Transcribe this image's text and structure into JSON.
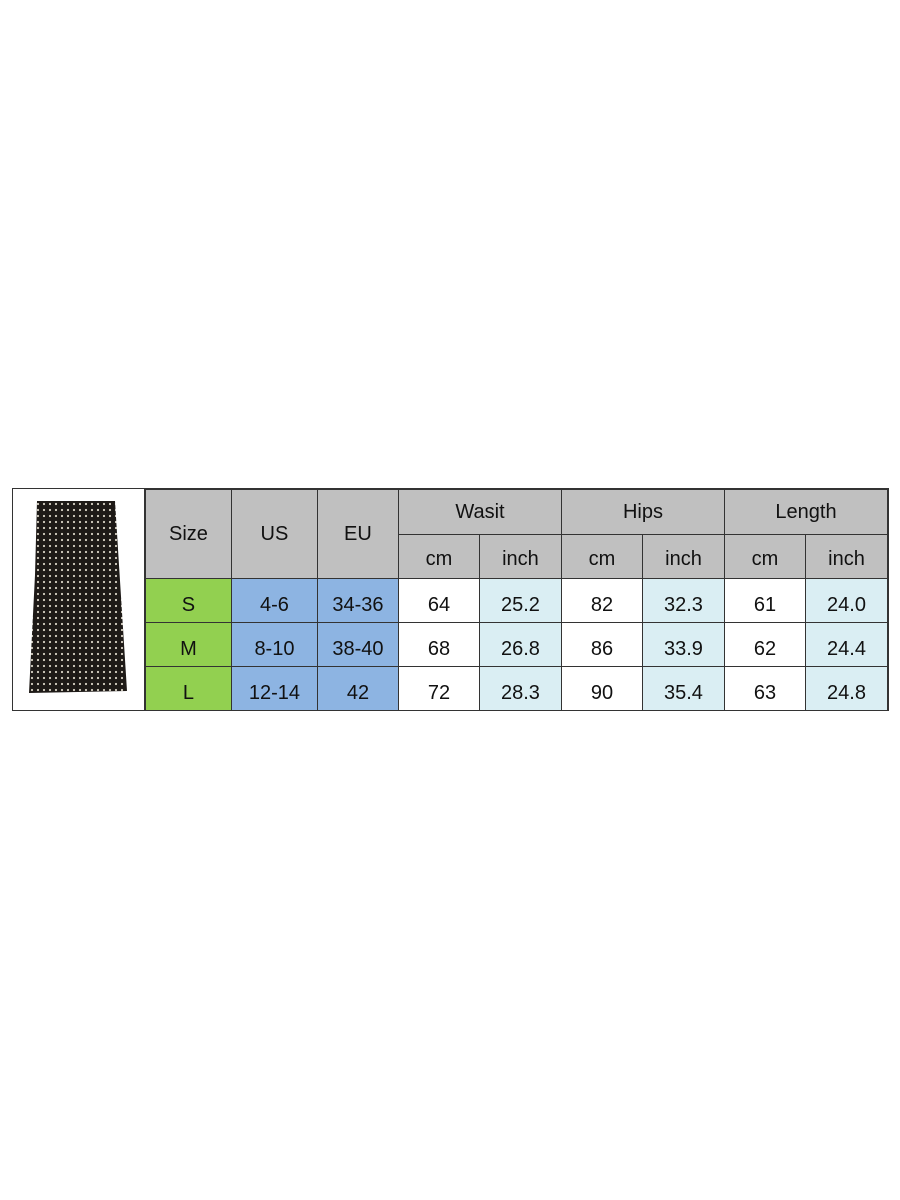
{
  "product_image": {
    "description_icon": "polka-dot-skirt-image",
    "colors": {
      "fabric": "#1e1a17",
      "dots": "#d8d2c4"
    }
  },
  "table": {
    "headers": {
      "size": "Size",
      "us": "US",
      "eu": "EU",
      "groups": [
        "Wasit",
        "Hips",
        "Length"
      ],
      "units": [
        "cm",
        "inch",
        "cm",
        "inch",
        "cm",
        "inch"
      ]
    },
    "rows": [
      {
        "size": "S",
        "us": "4-6",
        "eu": "34-36",
        "values": [
          "64",
          "25.2",
          "82",
          "32.3",
          "61",
          "24.0"
        ]
      },
      {
        "size": "M",
        "us": "8-10",
        "eu": "38-40",
        "values": [
          "68",
          "26.8",
          "86",
          "33.9",
          "62",
          "24.4"
        ]
      },
      {
        "size": "L",
        "us": "12-14",
        "eu": "42",
        "values": [
          "72",
          "28.3",
          "90",
          "35.4",
          "63",
          "24.8"
        ]
      }
    ],
    "colors": {
      "header": "#c0c0c0",
      "size_col": "#92d050",
      "region_cols": "#8db4e2",
      "inch_cols": "#daeef3"
    }
  }
}
